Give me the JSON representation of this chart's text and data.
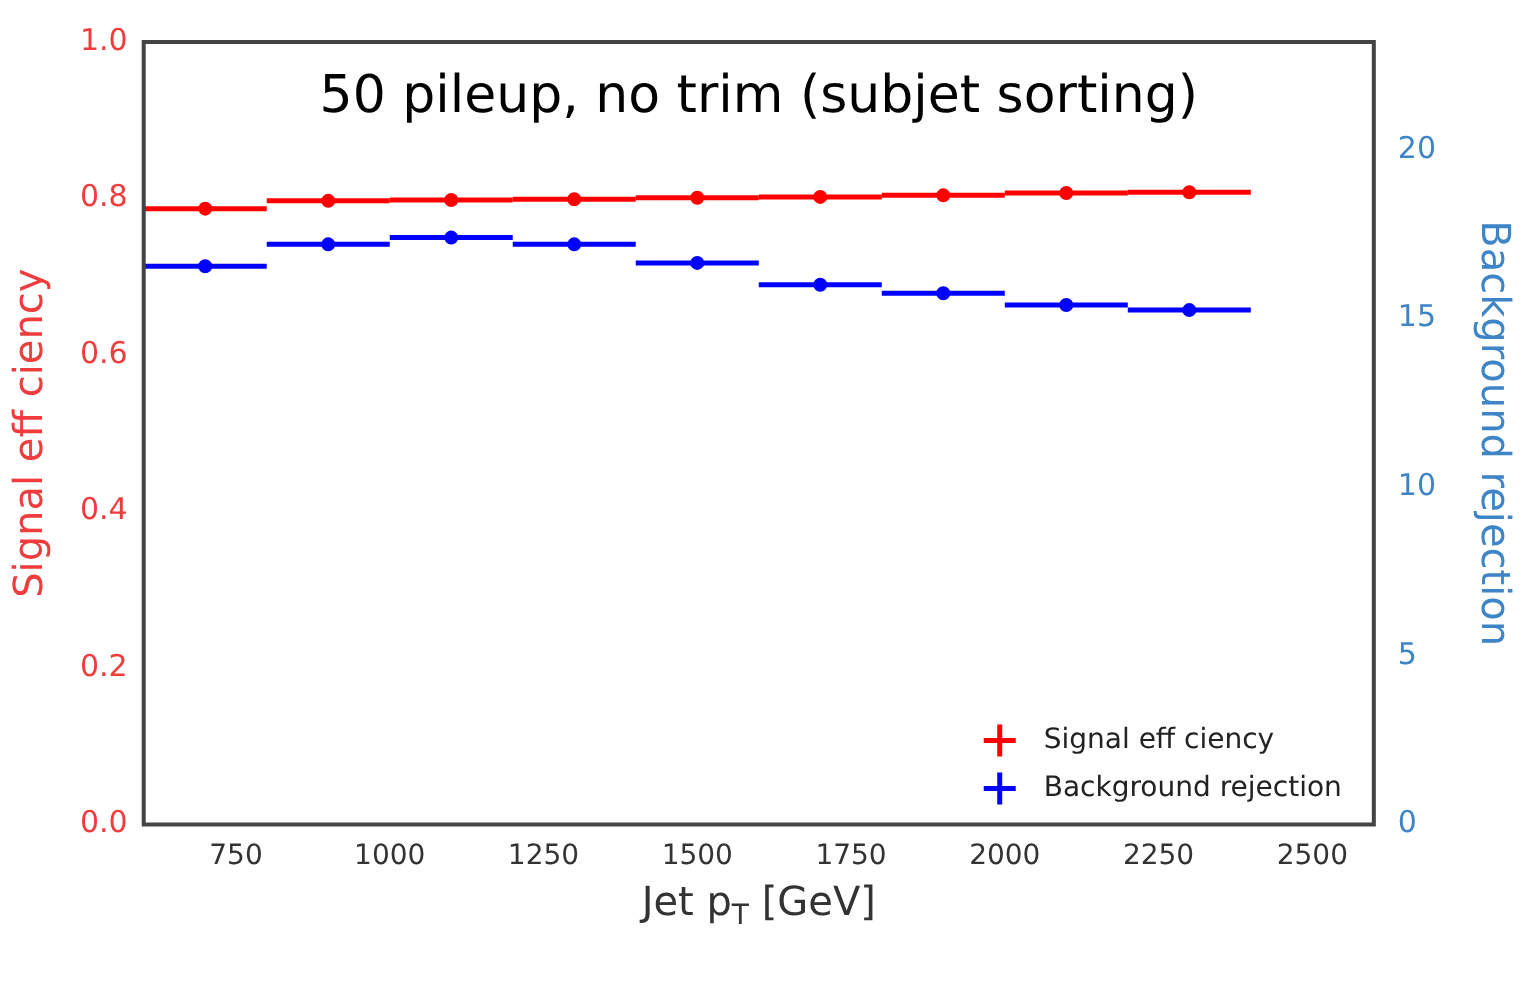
{
  "chart_data": {
    "type": "scatter",
    "title": "50 pileup, no trim (subjet sorting)",
    "xlabel": "Jet p$_{T}$ [GeV]",
    "ylabel": "Signal eff ciency",
    "y2label": "Background rejection",
    "x": [
      700,
      900,
      1100,
      1300,
      1500,
      1700,
      1900,
      2100,
      2300
    ],
    "series": [
      {
        "name": "Signal eff ciency",
        "color": "#ff0000",
        "values": [
          0.787,
          0.797,
          0.798,
          0.799,
          0.801,
          0.802,
          0.804,
          0.807,
          0.808
        ],
        "xerrors": [
          100,
          100,
          100,
          100,
          100,
          100,
          100,
          100,
          100
        ]
      },
      {
        "name": "Background rejection",
        "color": "#0000ff",
        "axis": "y2",
        "values": [
          16.55,
          17.2,
          17.4,
          17.2,
          16.65,
          16.0,
          15.75,
          15.4,
          15.25
        ],
        "xerrors": [
          100,
          100,
          100,
          100,
          100,
          100,
          100,
          100,
          100
        ]
      }
    ],
    "xlim": [
      600,
      2600
    ],
    "xticks": [
      750,
      1000,
      1250,
      1500,
      1750,
      2000,
      2250,
      2500
    ],
    "ylim": [
      0,
      1
    ],
    "yticks": [
      {
        "value": 0,
        "label": "0.0"
      },
      0.2,
      0.4,
      0.6,
      0.8,
      {
        "value": 1,
        "label": "1.0"
      }
    ],
    "y2lim": [
      0,
      23.2
    ],
    "y2ticks": [
      0,
      5,
      10,
      15,
      20
    ],
    "grid": false,
    "legend": "bottom right",
    "marker": "circle"
  }
}
